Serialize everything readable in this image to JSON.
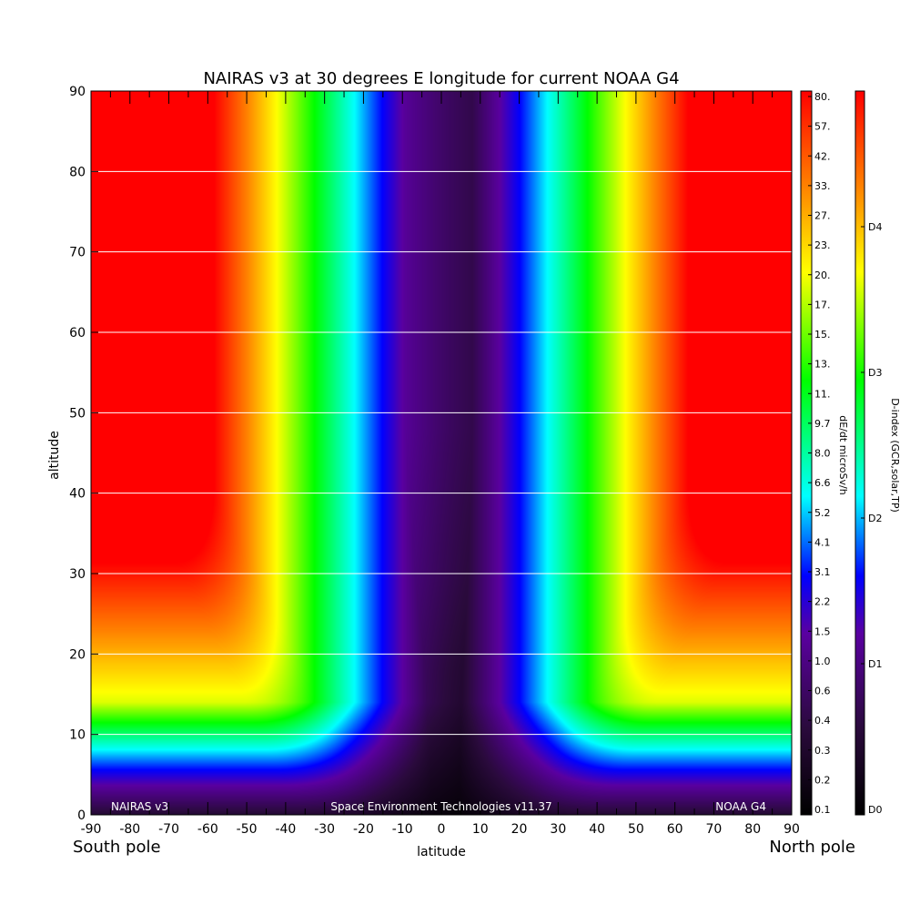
{
  "chart_data": {
    "type": "heatmap",
    "title": "NAIRAS v3 at 30 degrees E longitude for current NOAA G4",
    "xlabel": "latitude",
    "ylabel": "altitude",
    "xlim": [
      -90,
      90
    ],
    "ylim": [
      0,
      90
    ],
    "x_ticks": [
      "-90",
      "-80",
      "-70",
      "-60",
      "-50",
      "-40",
      "-30",
      "-20",
      "-10",
      "0",
      "10",
      "20",
      "30",
      "40",
      "50",
      "60",
      "70",
      "80",
      "90"
    ],
    "y_ticks": [
      "0",
      "10",
      "20",
      "30",
      "40",
      "50",
      "60",
      "70",
      "80",
      "90"
    ],
    "y_gridlines": [
      10,
      20,
      30,
      40,
      50,
      60,
      70,
      80,
      90
    ],
    "pole_labels": {
      "south": "South pole",
      "north": "North pole"
    },
    "footer": {
      "left": "NAIRAS v3",
      "center": "Space Environment Technologies v11.37",
      "right": "NOAA G4"
    },
    "colorbar_dose": {
      "label": "dE/dt microSv/h",
      "tick_labels": [
        "0.1",
        "0.2",
        "0.3",
        "0.4",
        "0.6",
        "1.0",
        "1.5",
        "2.2",
        "3.1",
        "4.1",
        "5.2",
        "6.6",
        "8.0",
        "9.7",
        "11.",
        "13.",
        "15.",
        "17.",
        "20.",
        "23.",
        "27.",
        "33.",
        "42.",
        "57.",
        "80."
      ]
    },
    "colorbar_dindex": {
      "label": "D-index (GCR,solar,TP)",
      "tick_labels": [
        "D0",
        "D1",
        "D2",
        "D3",
        "D4"
      ]
    },
    "structure": {
      "southern_red_boundary_lat": -50,
      "northern_red_boundary_lat": 55,
      "polar_red_min_altitude": 23,
      "equatorial_min_latitude": 15
    }
  }
}
